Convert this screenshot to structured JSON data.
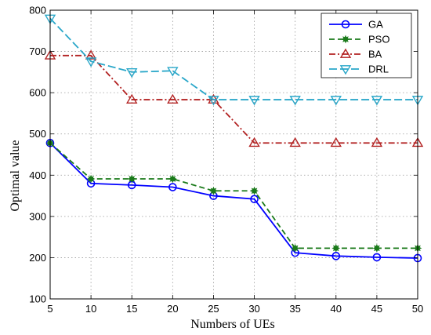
{
  "chart_data": {
    "type": "line",
    "xlabel": "Numbers of UEs",
    "ylabel": "Optimal value",
    "x": [
      5,
      10,
      15,
      20,
      25,
      30,
      35,
      40,
      45,
      50
    ],
    "xlim": [
      5,
      50
    ],
    "ylim": [
      100,
      800
    ],
    "xticks": [
      5,
      10,
      15,
      20,
      25,
      30,
      35,
      40,
      45,
      50
    ],
    "yticks": [
      100,
      200,
      300,
      400,
      500,
      600,
      700,
      800
    ],
    "grid": true,
    "legend_position": "top-right",
    "series": [
      {
        "name": "GA",
        "color": "#0000ff",
        "dash": "solid",
        "marker": "circle",
        "values": [
          478,
          380,
          376,
          371,
          350,
          342,
          212,
          204,
          201,
          199
        ]
      },
      {
        "name": "PSO",
        "color": "#1a7a1a",
        "dash": "dashed",
        "marker": "star",
        "values": [
          478,
          391,
          391,
          391,
          362,
          362,
          223,
          223,
          223,
          223
        ]
      },
      {
        "name": "BA",
        "color": "#b22222",
        "dash": "dashdot",
        "marker": "triangle-up",
        "values": [
          690,
          690,
          583,
          583,
          583,
          478,
          478,
          478,
          478,
          478
        ]
      },
      {
        "name": "DRL",
        "color": "#2aa7c9",
        "dash": "longdash",
        "marker": "triangle-down",
        "values": [
          780,
          676,
          650,
          653,
          583,
          583,
          583,
          583,
          583,
          583
        ]
      }
    ]
  }
}
